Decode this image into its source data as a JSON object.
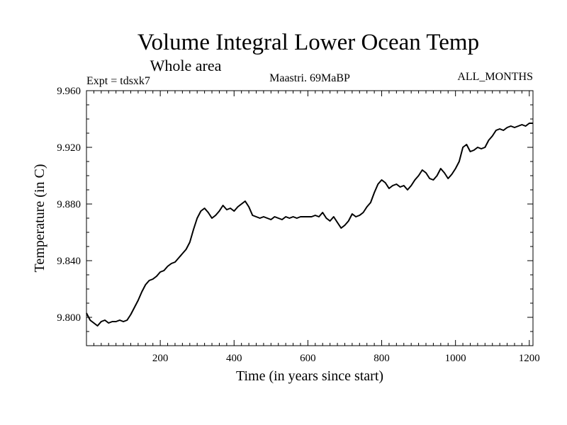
{
  "chart_data": {
    "type": "line",
    "title": "Volume Integral Lower Ocean Temp",
    "subtitle": "Whole area",
    "experiment": "Expt = tdsxk7",
    "period": "Maastri.  69MaBP",
    "months": "ALL_MONTHS",
    "xlabel": "Time (in years since start)",
    "ylabel": "Temperature (in C)",
    "xlim": [
      0,
      1210
    ],
    "ylim": [
      9.78,
      9.96
    ],
    "xticks": [
      200,
      400,
      600,
      800,
      1000,
      1200
    ],
    "xtick_labels": [
      "200",
      "400",
      "600",
      "800",
      "1000",
      "1200"
    ],
    "yticks": [
      9.8,
      9.84,
      9.88,
      9.92,
      9.96
    ],
    "ytick_labels": [
      "9.800",
      "9.840",
      "9.880",
      "9.920",
      "9.960"
    ],
    "grid": false,
    "series": [
      {
        "name": "Volume Integral Lower Ocean Temp",
        "x": [
          0,
          10,
          20,
          30,
          40,
          50,
          60,
          70,
          80,
          90,
          100,
          110,
          120,
          130,
          140,
          150,
          160,
          170,
          180,
          190,
          200,
          210,
          220,
          230,
          240,
          250,
          260,
          270,
          280,
          290,
          300,
          310,
          320,
          330,
          340,
          350,
          360,
          370,
          380,
          390,
          400,
          410,
          420,
          430,
          440,
          450,
          460,
          470,
          480,
          490,
          500,
          510,
          520,
          530,
          540,
          550,
          560,
          570,
          580,
          590,
          600,
          610,
          620,
          630,
          640,
          650,
          660,
          670,
          680,
          690,
          700,
          710,
          720,
          730,
          740,
          750,
          760,
          770,
          780,
          790,
          800,
          810,
          820,
          830,
          840,
          850,
          860,
          870,
          880,
          890,
          900,
          910,
          920,
          930,
          940,
          950,
          960,
          970,
          980,
          990,
          1000,
          1010,
          1020,
          1030,
          1040,
          1050,
          1060,
          1070,
          1080,
          1090,
          1100,
          1110,
          1120,
          1130,
          1140,
          1150,
          1160,
          1170,
          1180,
          1190,
          1200,
          1210
        ],
        "y": [
          9.803,
          9.798,
          9.796,
          9.794,
          9.797,
          9.798,
          9.796,
          9.797,
          9.797,
          9.798,
          9.797,
          9.798,
          9.802,
          9.807,
          9.812,
          9.818,
          9.823,
          9.826,
          9.827,
          9.829,
          9.832,
          9.833,
          9.836,
          9.838,
          9.839,
          9.842,
          9.845,
          9.848,
          9.853,
          9.862,
          9.87,
          9.875,
          9.877,
          9.874,
          9.87,
          9.872,
          9.875,
          9.879,
          9.876,
          9.877,
          9.875,
          9.878,
          9.88,
          9.882,
          9.878,
          9.872,
          9.871,
          9.87,
          9.871,
          9.87,
          9.869,
          9.871,
          9.87,
          9.869,
          9.871,
          9.87,
          9.871,
          9.87,
          9.871,
          9.871,
          9.871,
          9.871,
          9.872,
          9.871,
          9.874,
          9.87,
          9.868,
          9.871,
          9.867,
          9.863,
          9.865,
          9.868,
          9.873,
          9.871,
          9.872,
          9.874,
          9.878,
          9.881,
          9.888,
          9.894,
          9.897,
          9.895,
          9.891,
          9.893,
          9.894,
          9.892,
          9.893,
          9.89,
          9.893,
          9.897,
          9.9,
          9.904,
          9.902,
          9.898,
          9.897,
          9.9,
          9.905,
          9.902,
          9.898,
          9.901,
          9.905,
          9.91,
          9.92,
          9.922,
          9.917,
          9.918,
          9.92,
          9.919,
          9.92,
          9.925,
          9.928,
          9.932,
          9.933,
          9.932,
          9.934,
          9.935,
          9.934,
          9.935,
          9.936,
          9.935,
          9.937,
          9.937
        ]
      }
    ]
  }
}
